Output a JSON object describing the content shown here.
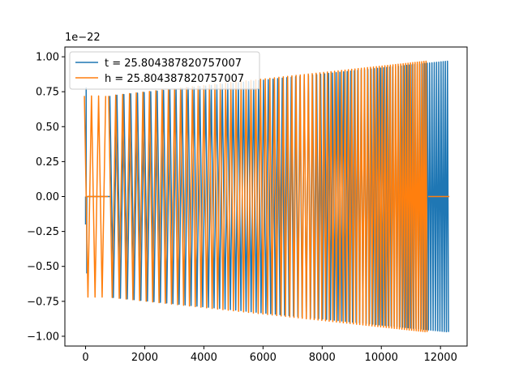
{
  "chart_data": {
    "type": "line",
    "title": "",
    "xlabel": "",
    "ylabel": "",
    "offset_text": "1e−22",
    "xlim": [
      -700,
      12900
    ],
    "ylim": [
      -1.07,
      1.07
    ],
    "x_ticks": [
      0,
      2000,
      4000,
      6000,
      8000,
      10000,
      12000
    ],
    "x_tick_labels": [
      "0",
      "2000",
      "4000",
      "6000",
      "8000",
      "10000",
      "12000"
    ],
    "y_ticks": [
      -1.0,
      -0.75,
      -0.5,
      -0.25,
      0.0,
      0.25,
      0.5,
      0.75,
      1.0
    ],
    "y_tick_labels": [
      "−1.00",
      "−0.75",
      "−0.50",
      "−0.25",
      "0.00",
      "0.25",
      "0.50",
      "0.75",
      "1.00"
    ],
    "grid": false,
    "legend_position": "top-left",
    "series": [
      {
        "name": "t = 25.804387820757007",
        "color": "#1f77b4",
        "segments": [
          {
            "kind": "pulse",
            "x": 0,
            "y": -0.2
          },
          {
            "kind": "pulse",
            "x": 20,
            "y": 0.78
          },
          {
            "kind": "pulse",
            "x": 40,
            "y": -0.55
          },
          {
            "kind": "flat",
            "x_start": 60,
            "x_end": 820,
            "y": 0.0
          },
          {
            "kind": "chirp",
            "x_start": 820,
            "x_end": 12300,
            "amp_start": 0.72,
            "amp_end": 0.97,
            "spacing_start": 240,
            "spacing_end": 70
          }
        ]
      },
      {
        "name": "h = 25.804387820757007",
        "color": "#ff7f0e",
        "segments": [
          {
            "kind": "chirp",
            "x_start": -40,
            "x_end": 700,
            "amp_start": 0.72,
            "amp_end": 0.72,
            "spacing_start": 240,
            "spacing_end": 240
          },
          {
            "kind": "flat",
            "x_start": 30,
            "x_end": 760,
            "y": 0.0
          },
          {
            "kind": "chirp",
            "x_start": 780,
            "x_end": 11580,
            "amp_start": 0.72,
            "amp_end": 0.97,
            "spacing_start": 240,
            "spacing_end": 70
          },
          {
            "kind": "flat",
            "x_start": 11580,
            "x_end": 12300,
            "y": 0.0
          }
        ]
      }
    ]
  }
}
